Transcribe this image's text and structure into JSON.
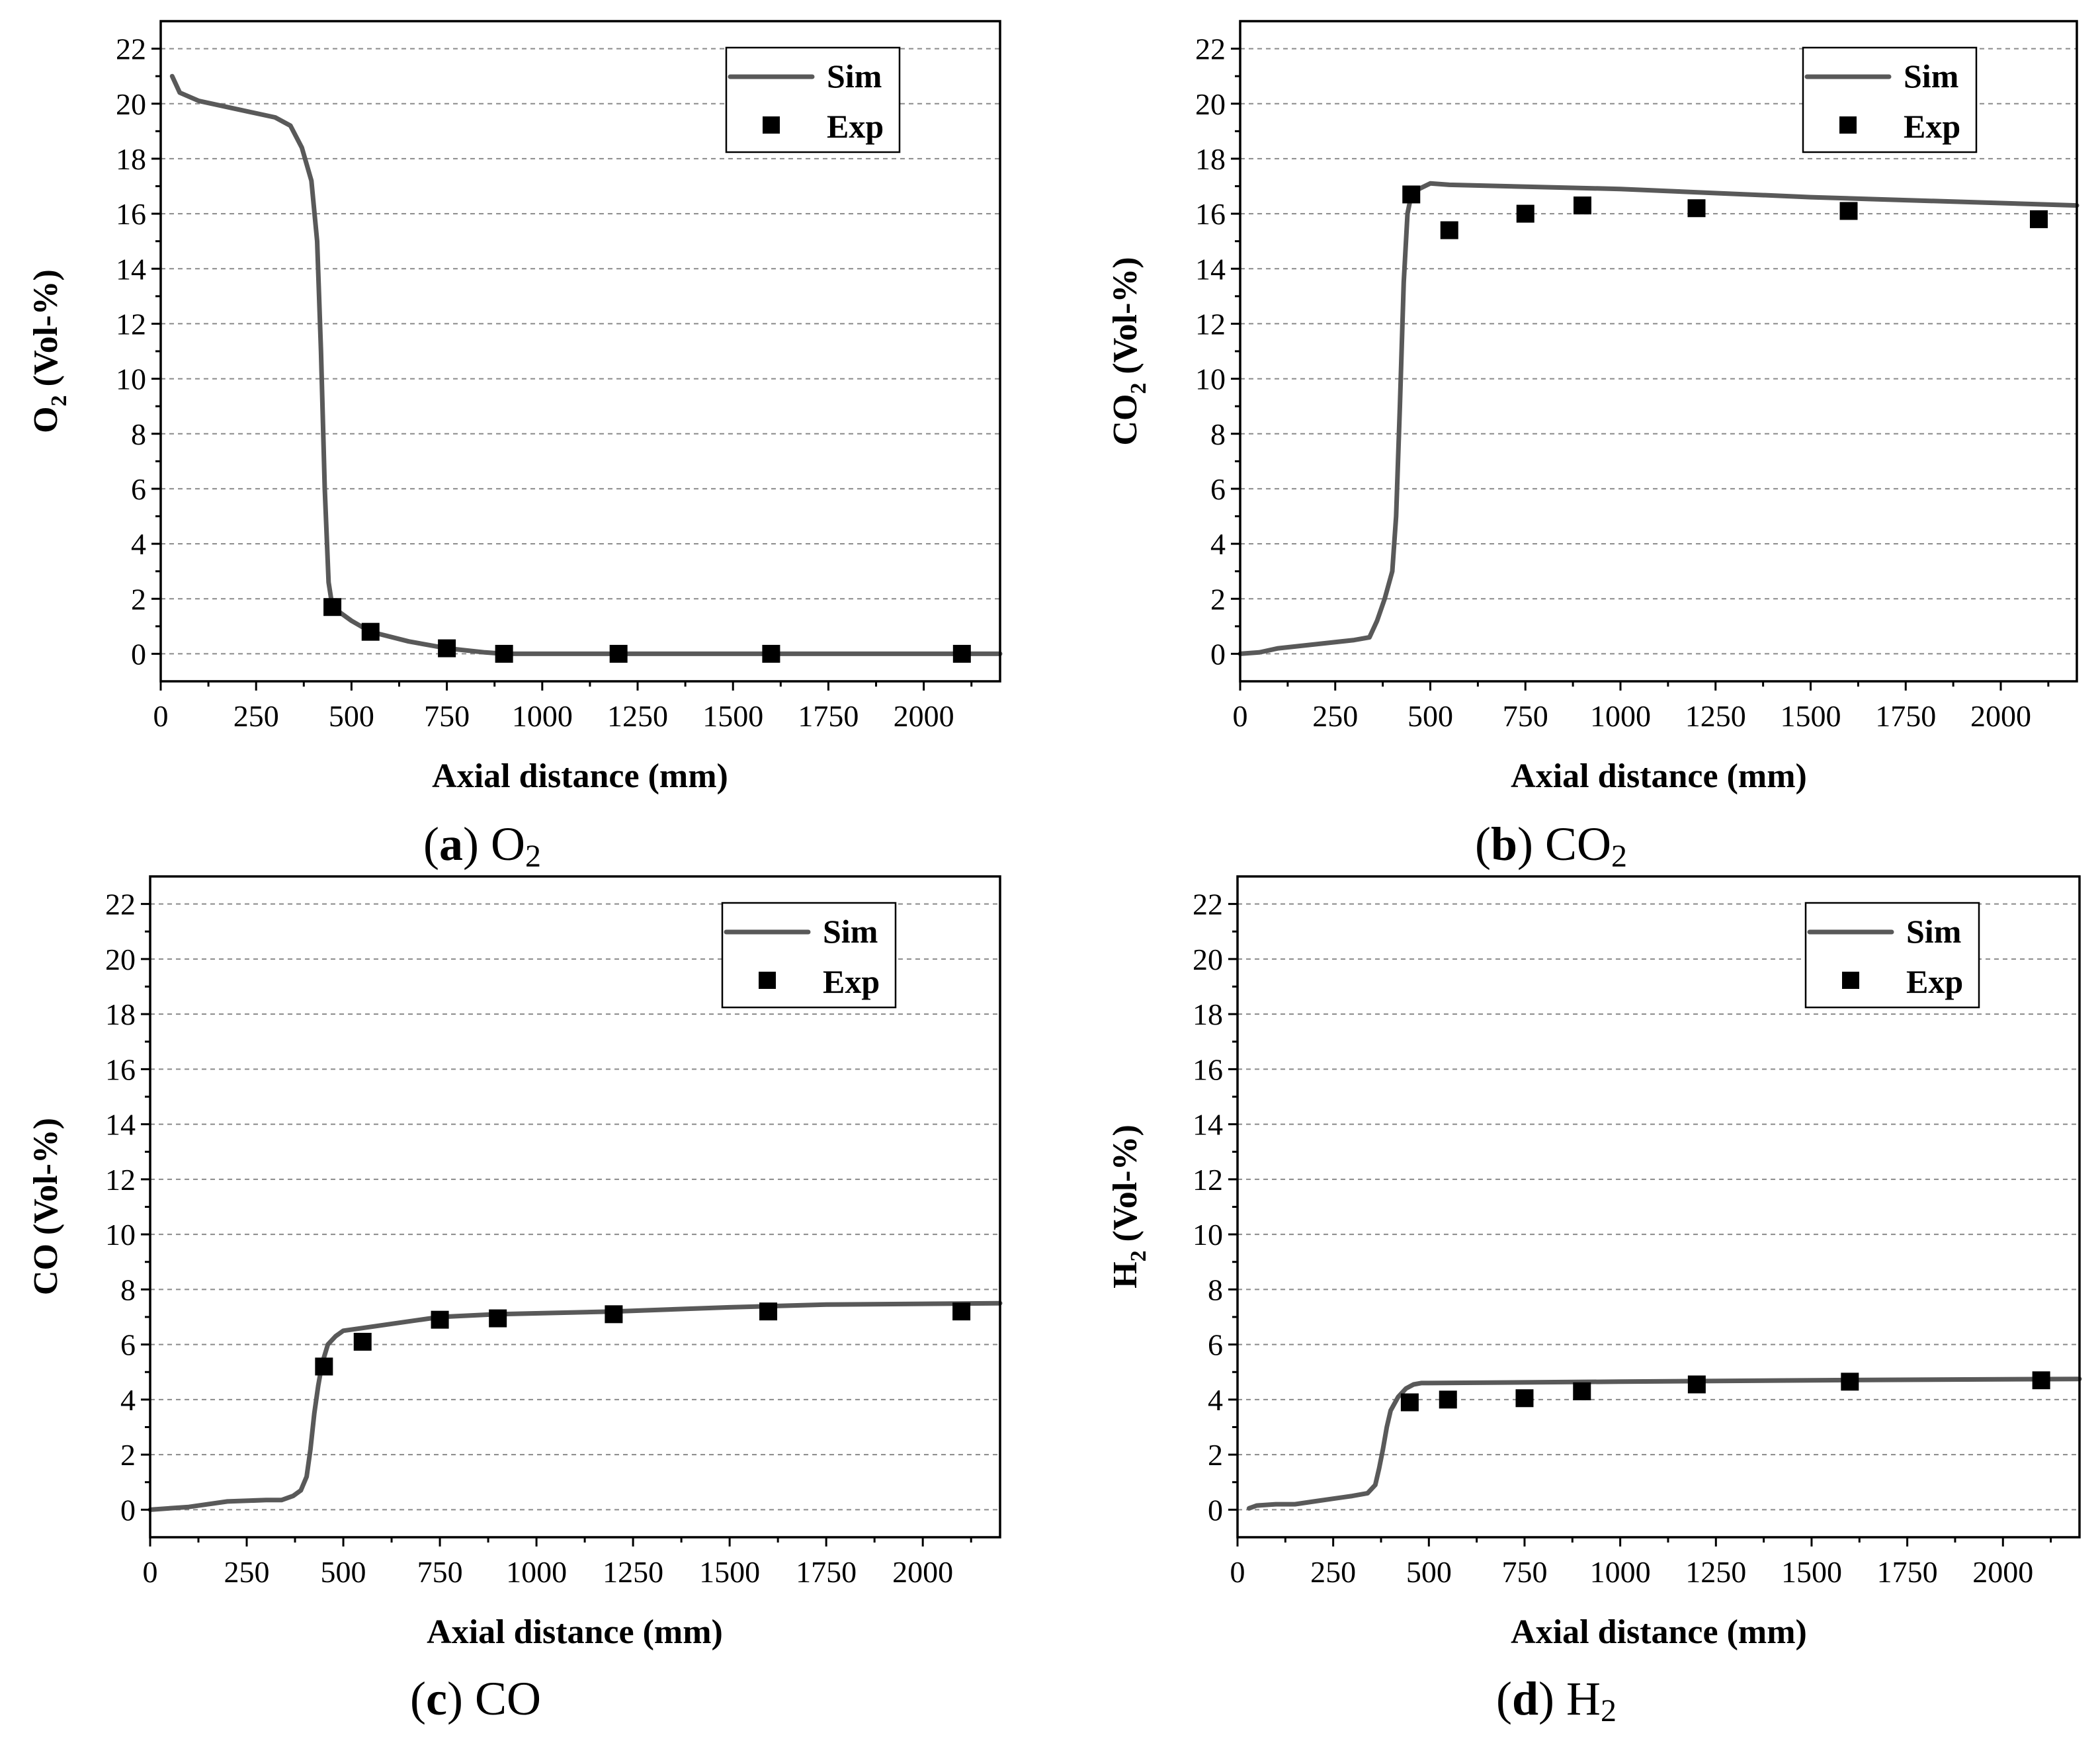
{
  "chart_data": [
    {
      "type": "line",
      "panel_id": "a",
      "caption_letter": "a",
      "caption_species": "O",
      "caption_sub": "2",
      "ylabel_main": "O",
      "ylabel_sub": "2",
      "ylabel_rest": " (Vol-%)",
      "xlabel": "Axial distance (mm)",
      "xlim": [
        0,
        2200
      ],
      "ylim": [
        -1,
        23
      ],
      "xticks": [
        0,
        250,
        500,
        750,
        1000,
        1250,
        1500,
        1750,
        2000
      ],
      "yticks": [
        0,
        2,
        4,
        6,
        8,
        10,
        12,
        14,
        16,
        18,
        20,
        22
      ],
      "legend": [
        "Sim",
        "Exp"
      ],
      "legend_position": "top-right",
      "series": [
        {
          "name": "Sim",
          "kind": "line",
          "x": [
            30,
            50,
            100,
            200,
            300,
            340,
            370,
            395,
            410,
            420,
            430,
            440,
            450,
            470,
            500,
            550,
            650,
            750,
            850,
            900,
            1000,
            1500,
            2200
          ],
          "y": [
            21,
            20.4,
            20.1,
            19.8,
            19.5,
            19.2,
            18.4,
            17.2,
            15,
            11,
            6,
            2.6,
            1.7,
            1.5,
            1.2,
            0.8,
            0.45,
            0.2,
            0.05,
            0,
            0,
            0,
            0
          ]
        },
        {
          "name": "Exp",
          "kind": "scatter",
          "x": [
            450,
            550,
            750,
            900,
            1200,
            1600,
            2100
          ],
          "y": [
            1.7,
            0.8,
            0.2,
            0,
            0,
            0,
            0
          ]
        }
      ]
    },
    {
      "type": "line",
      "panel_id": "b",
      "caption_letter": "b",
      "caption_species": "CO",
      "caption_sub": "2",
      "ylabel_main": "CO",
      "ylabel_sub": "2",
      "ylabel_rest": " (Vol-%)",
      "xlabel": "Axial distance (mm)",
      "xlim": [
        0,
        2200
      ],
      "ylim": [
        -1,
        23
      ],
      "xticks": [
        0,
        250,
        500,
        750,
        1000,
        1250,
        1500,
        1750,
        2000
      ],
      "yticks": [
        0,
        2,
        4,
        6,
        8,
        10,
        12,
        14,
        16,
        18,
        20,
        22
      ],
      "legend": [
        "Sim",
        "Exp"
      ],
      "legend_position": "top-right",
      "series": [
        {
          "name": "Sim",
          "kind": "line",
          "x": [
            0,
            50,
            100,
            200,
            300,
            340,
            360,
            380,
            400,
            410,
            420,
            430,
            440,
            450,
            470,
            500,
            550,
            1000,
            1500,
            2200
          ],
          "y": [
            0,
            0.05,
            0.2,
            0.35,
            0.5,
            0.6,
            1.2,
            2,
            3,
            5,
            9,
            13.5,
            16,
            16.7,
            16.9,
            17.1,
            17.05,
            16.9,
            16.6,
            16.3
          ]
        },
        {
          "name": "Exp",
          "kind": "scatter",
          "x": [
            450,
            550,
            750,
            900,
            1200,
            1600,
            2100
          ],
          "y": [
            16.7,
            15.4,
            16,
            16.3,
            16.2,
            16.1,
            15.8
          ]
        }
      ]
    },
    {
      "type": "line",
      "panel_id": "c",
      "caption_letter": "c",
      "caption_species": "CO",
      "caption_sub": "",
      "ylabel_main": "CO (Vol-%)",
      "ylabel_sub": "",
      "ylabel_rest": "",
      "xlabel": "Axial distance (mm)",
      "xlim": [
        0,
        2200
      ],
      "ylim": [
        -1,
        23
      ],
      "xticks": [
        0,
        250,
        500,
        750,
        1000,
        1250,
        1500,
        1750,
        2000
      ],
      "yticks": [
        0,
        2,
        4,
        6,
        8,
        10,
        12,
        14,
        16,
        18,
        20,
        22
      ],
      "legend": [
        "Sim",
        "Exp"
      ],
      "legend_position": "top-right",
      "series": [
        {
          "name": "Sim",
          "kind": "line",
          "x": [
            0,
            50,
            100,
            200,
            300,
            340,
            370,
            390,
            405,
            415,
            425,
            435,
            445,
            460,
            480,
            500,
            550,
            650,
            750,
            900,
            1200,
            1500,
            1750,
            2200
          ],
          "y": [
            0,
            0.05,
            0.1,
            0.3,
            0.35,
            0.35,
            0.5,
            0.7,
            1.2,
            2.2,
            3.5,
            4.5,
            5.3,
            6,
            6.3,
            6.5,
            6.6,
            6.8,
            7,
            7.1,
            7.2,
            7.35,
            7.45,
            7.5
          ]
        },
        {
          "name": "Exp",
          "kind": "scatter",
          "x": [
            450,
            550,
            750,
            900,
            1200,
            1600,
            2100
          ],
          "y": [
            5.2,
            6.1,
            6.9,
            6.95,
            7.1,
            7.2,
            7.2
          ]
        }
      ]
    },
    {
      "type": "line",
      "panel_id": "d",
      "caption_letter": "d",
      "caption_species": "H",
      "caption_sub": "2",
      "ylabel_main": "H",
      "ylabel_sub": "2",
      "ylabel_rest": " (Vol-%)",
      "xlabel": "Axial distance (mm)",
      "xlim": [
        0,
        2200
      ],
      "ylim": [
        -1,
        23
      ],
      "xticks": [
        0,
        250,
        500,
        750,
        1000,
        1250,
        1500,
        1750,
        2000
      ],
      "yticks": [
        0,
        2,
        4,
        6,
        8,
        10,
        12,
        14,
        16,
        18,
        20,
        22
      ],
      "legend": [
        "Sim",
        "Exp"
      ],
      "legend_position": "top-right",
      "series": [
        {
          "name": "Sim",
          "kind": "line",
          "x": [
            30,
            50,
            100,
            150,
            200,
            250,
            300,
            340,
            360,
            370,
            380,
            390,
            400,
            420,
            440,
            460,
            480,
            500,
            1000,
            1500,
            2200
          ],
          "y": [
            0.05,
            0.15,
            0.2,
            0.2,
            0.3,
            0.4,
            0.5,
            0.6,
            0.9,
            1.5,
            2.2,
            3,
            3.6,
            4.1,
            4.4,
            4.55,
            4.6,
            4.6,
            4.65,
            4.7,
            4.75
          ]
        },
        {
          "name": "Exp",
          "kind": "scatter",
          "x": [
            450,
            550,
            750,
            900,
            1200,
            1600,
            2100
          ],
          "y": [
            3.9,
            4,
            4.05,
            4.3,
            4.55,
            4.65,
            4.7
          ]
        }
      ]
    }
  ]
}
